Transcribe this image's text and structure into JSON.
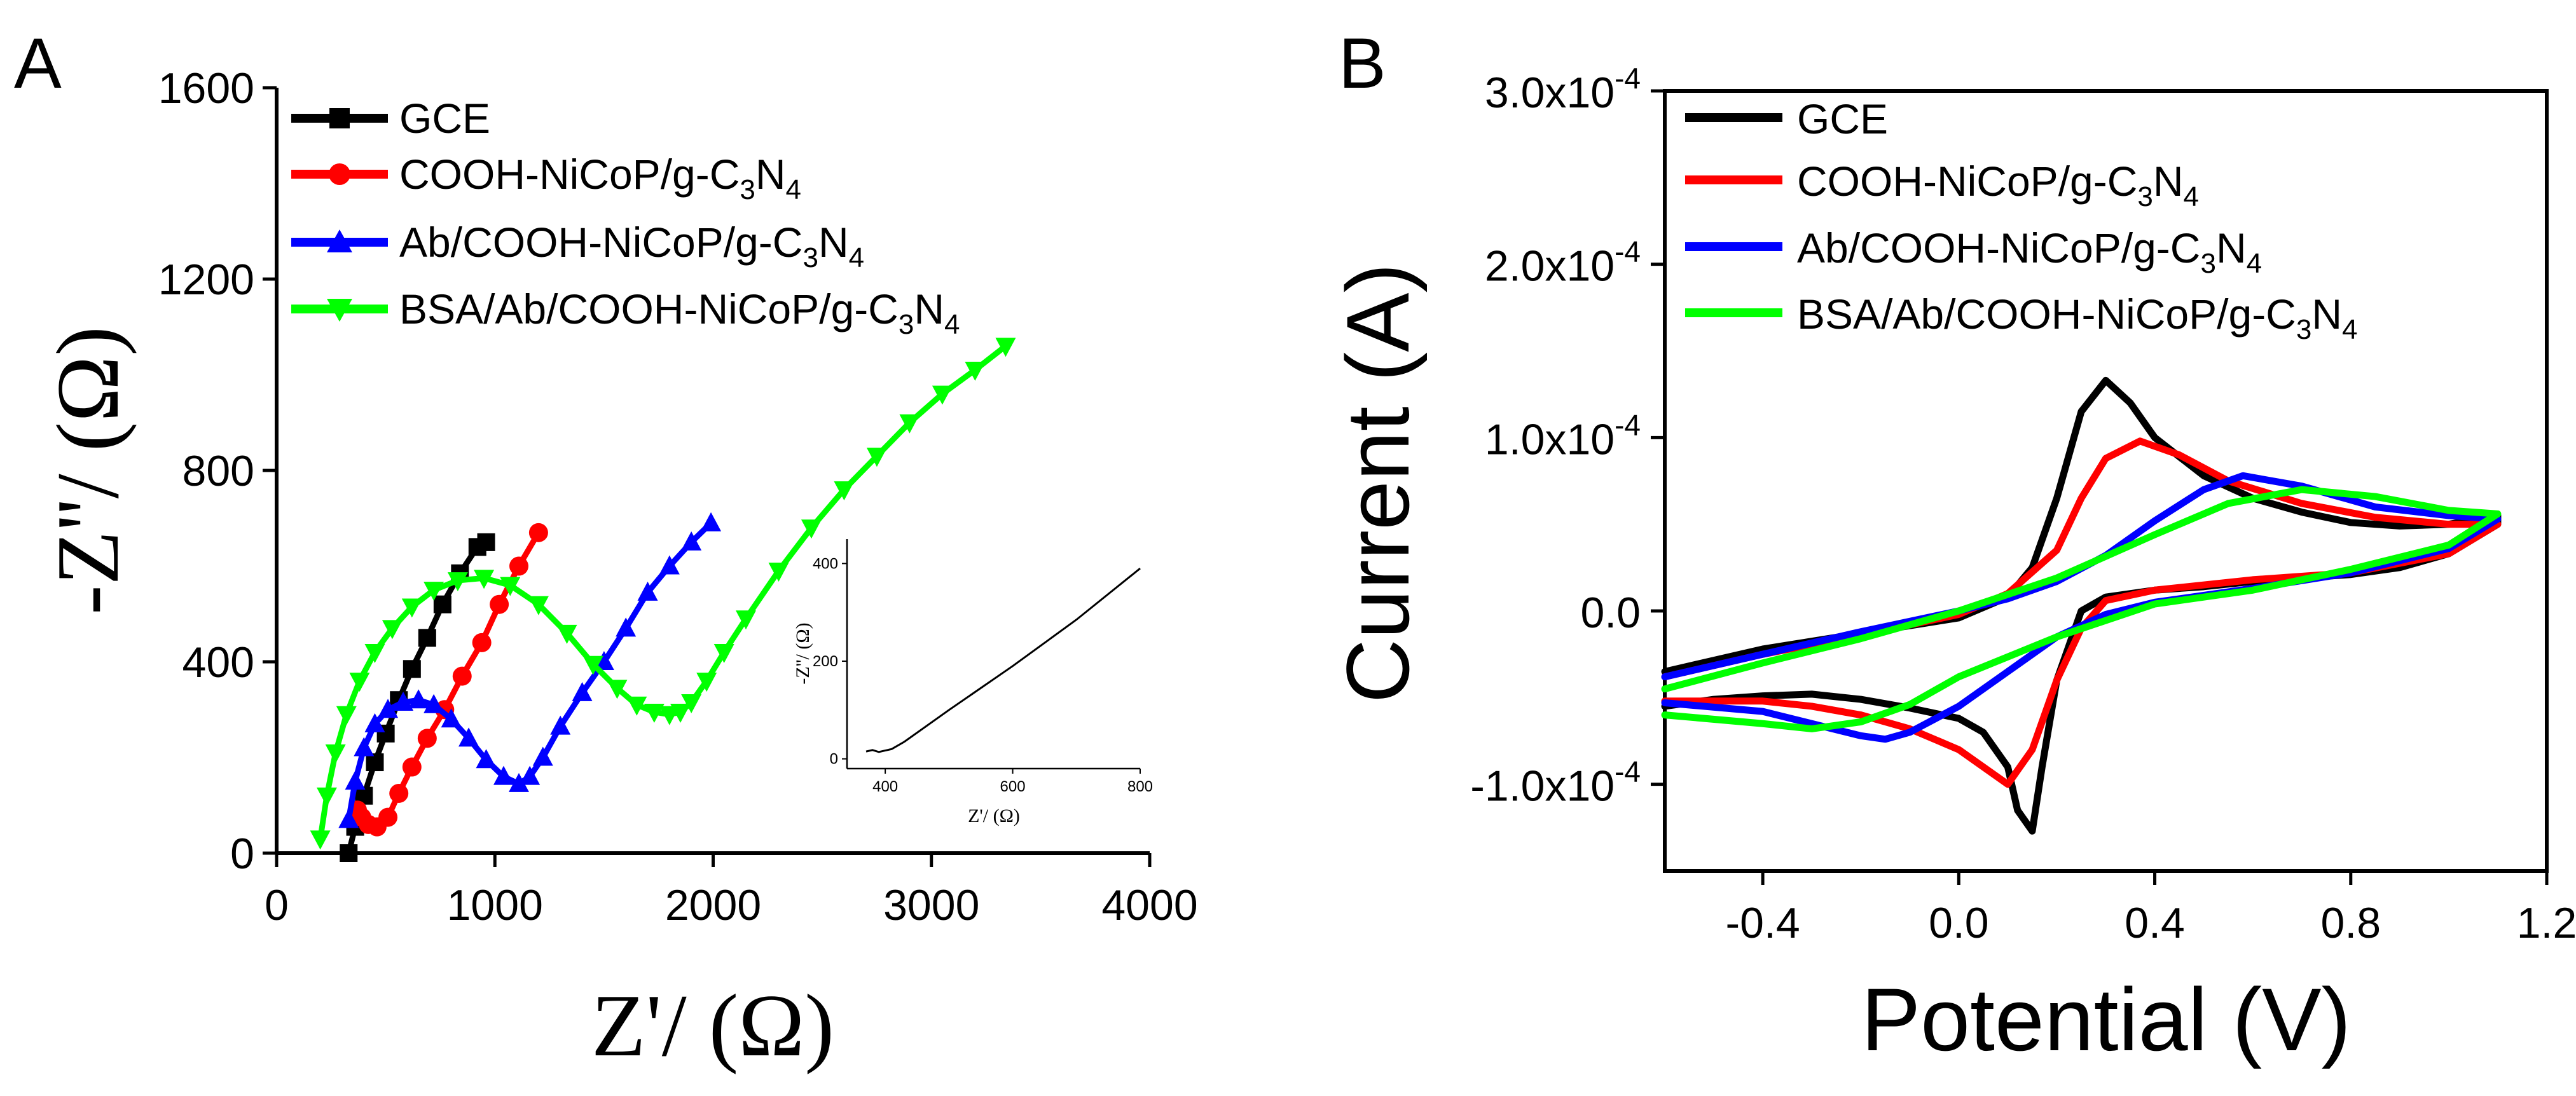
{
  "colors": {
    "gce": "#000000",
    "cooh": "#ff0000",
    "ab": "#0000ff",
    "bsa": "#00ff00"
  },
  "chart_data": [
    {
      "panel": "A",
      "type": "scatter",
      "title": "",
      "xlabel": "Z'/ (Ω)",
      "ylabel": "-Z''/ (Ω)",
      "xlim": [
        0,
        4000
      ],
      "ylim": [
        0,
        1600
      ],
      "xticks": [
        0,
        1000,
        2000,
        3000,
        4000
      ],
      "yticks": [
        0,
        400,
        800,
        1200,
        1600
      ],
      "legend_position": "top-left",
      "series": [
        {
          "name": "GCE",
          "legend_text": "GCE",
          "color": "#000000",
          "marker": "square",
          "x": [
            330,
            360,
            400,
            450,
            500,
            560,
            620,
            690,
            760,
            840,
            920,
            960
          ],
          "y": [
            0,
            55,
            120,
            190,
            250,
            320,
            385,
            450,
            520,
            585,
            640,
            650
          ]
        },
        {
          "name": "COOH-NiCoP/g-C3N4",
          "legend_text": "COOH-NiCoP/g-C",
          "legend_sub1": "3",
          "legend_mid": "N",
          "legend_sub2": "4",
          "color": "#ff0000",
          "marker": "circle",
          "x": [
            370,
            390,
            420,
            460,
            510,
            560,
            620,
            690,
            770,
            850,
            940,
            1020,
            1110,
            1200
          ],
          "y": [
            90,
            75,
            60,
            55,
            75,
            125,
            180,
            240,
            300,
            370,
            440,
            520,
            600,
            670
          ]
        },
        {
          "name": "Ab/COOH-NiCoP/g-C3N4",
          "legend_text": "Ab/COOH-NiCoP/g-C",
          "legend_sub1": "3",
          "legend_mid": "N",
          "legend_sub2": "4",
          "color": "#0000ff",
          "marker": "triangle",
          "x": [
            330,
            360,
            400,
            450,
            510,
            580,
            650,
            720,
            800,
            880,
            960,
            1040,
            1110,
            1160,
            1220,
            1300,
            1400,
            1500,
            1600,
            1700,
            1800,
            1900,
            1990
          ],
          "y": [
            70,
            150,
            220,
            270,
            300,
            315,
            320,
            310,
            280,
            240,
            195,
            160,
            145,
            160,
            200,
            265,
            335,
            400,
            470,
            545,
            600,
            650,
            690
          ]
        },
        {
          "name": "BSA/Ab/COOH-NiCoP/g-C3N4",
          "legend_text": "BSA/Ab/COOH-NiCoP/g-C",
          "legend_sub1": "3",
          "legend_mid": "N",
          "legend_sub2": "4",
          "color": "#00ff00",
          "marker": "triangle-down",
          "x": [
            200,
            230,
            270,
            320,
            380,
            450,
            530,
            620,
            720,
            830,
            950,
            1070,
            1200,
            1330,
            1450,
            1560,
            1650,
            1730,
            1800,
            1850,
            1900,
            1970,
            2050,
            2150,
            2300,
            2450,
            2600,
            2750,
            2900,
            3050,
            3200,
            3340
          ],
          "y": [
            30,
            120,
            210,
            290,
            360,
            420,
            470,
            515,
            550,
            570,
            575,
            560,
            520,
            460,
            395,
            345,
            310,
            295,
            290,
            295,
            315,
            360,
            420,
            490,
            590,
            680,
            760,
            830,
            900,
            960,
            1010,
            1060
          ]
        }
      ],
      "inset": {
        "type": "line",
        "xlabel": "Z'/ (Ω)",
        "ylabel": "-Z''/ (Ω)",
        "xlim": [
          340,
          800
        ],
        "ylim": [
          -20,
          450
        ],
        "xticks": [
          400,
          600,
          800
        ],
        "yticks": [
          0,
          200,
          400
        ],
        "series": [
          {
            "name": "inset",
            "color": "#000000",
            "x": [
              370,
              380,
              390,
              400,
              410,
              430,
              500,
              600,
              700,
              800
            ],
            "y": [
              15,
              18,
              14,
              17,
              20,
              35,
              100,
              190,
              285,
              390
            ]
          }
        ]
      }
    },
    {
      "panel": "B",
      "type": "line",
      "title": "",
      "xlabel": "Potential (V)",
      "ylabel": "Current (A)",
      "xlim": [
        -0.6,
        1.2
      ],
      "ylim": [
        -0.00015,
        0.0003
      ],
      "xticks": [
        -0.4,
        0.0,
        0.4,
        0.8,
        1.2
      ],
      "xtick_labels": [
        "-0.4",
        "0.0",
        "0.4",
        "0.8",
        "1.2"
      ],
      "yticks": [
        -0.0001,
        0,
        0.0001,
        0.0002,
        0.0003
      ],
      "ytick_labels": [
        {
          "mant": "-1.0x10",
          "exp": "-4"
        },
        {
          "mant": "0.0",
          "exp": ""
        },
        {
          "mant": "1.0x10",
          "exp": "-4"
        },
        {
          "mant": "2.0x10",
          "exp": "-4"
        },
        {
          "mant": "3.0x10",
          "exp": "-4"
        }
      ],
      "legend_position": "top-left",
      "series": [
        {
          "name": "GCE",
          "legend_text": "GCE",
          "color": "#000000",
          "x": [
            -0.6,
            -0.4,
            -0.2,
            0.0,
            0.1,
            0.15,
            0.2,
            0.25,
            0.3,
            0.35,
            0.4,
            0.5,
            0.6,
            0.7,
            0.8,
            0.9,
            1.0,
            1.1,
            1.1,
            1.0,
            0.9,
            0.8,
            0.7,
            0.6,
            0.5,
            0.4,
            0.3,
            0.25,
            0.2,
            0.17,
            0.15,
            0.12,
            0.1,
            0.05,
            0.0,
            -0.1,
            -0.2,
            -0.3,
            -0.4,
            -0.5,
            -0.6
          ],
          "y": [
            -3.5e-05,
            -2.2e-05,
            -1.3e-05,
            -4e-06,
            8e-06,
            2.5e-05,
            6.5e-05,
            0.000115,
            0.000133,
            0.00012,
            0.0001,
            7.8e-05,
            6.5e-05,
            5.7e-05,
            5.1e-05,
            4.9e-05,
            5e-05,
            5.5e-05,
            5e-05,
            3.3e-05,
            2.5e-05,
            2.1e-05,
            1.9e-05,
            1.7e-05,
            1.4e-05,
            1.2e-05,
            8e-06,
            0,
            -4e-05,
            -9e-05,
            -0.000127,
            -0.000115,
            -9e-05,
            -7e-05,
            -6.2e-05,
            -5.6e-05,
            -5.1e-05,
            -4.8e-05,
            -4.9e-05,
            -5.1e-05,
            -5.5e-05
          ]
        },
        {
          "name": "COOH-NiCoP/g-C3N4",
          "legend_text": "COOH-NiCoP/g-C",
          "legend_sub1": "3",
          "legend_mid": "N",
          "legend_sub2": "4",
          "color": "#ff0000",
          "x": [
            -0.6,
            -0.4,
            -0.2,
            0.0,
            0.1,
            0.2,
            0.25,
            0.3,
            0.37,
            0.45,
            0.55,
            0.7,
            0.85,
            1.0,
            1.1,
            1.1,
            1.0,
            0.8,
            0.6,
            0.4,
            0.3,
            0.25,
            0.2,
            0.15,
            0.1,
            0.05,
            0.0,
            -0.1,
            -0.2,
            -0.3,
            -0.4,
            -0.6
          ],
          "y": [
            -3.8e-05,
            -2.5e-05,
            -1.4e-05,
            -2e-06,
            1e-05,
            3.5e-05,
            6.5e-05,
            8.8e-05,
            9.8e-05,
            9e-05,
            7.5e-05,
            6.2e-05,
            5.4e-05,
            5e-05,
            5e-05,
            5e-05,
            3.3e-05,
            2.2e-05,
            1.8e-05,
            1.2e-05,
            6e-06,
            -1e-05,
            -4e-05,
            -8e-05,
            -0.0001,
            -9e-05,
            -8e-05,
            -6.8e-05,
            -6e-05,
            -5.5e-05,
            -5.2e-05,
            -5.2e-05
          ]
        },
        {
          "name": "Ab/COOH-NiCoP/g-C3N4",
          "legend_text": "Ab/COOH-NiCoP/g-C",
          "legend_sub1": "3",
          "legend_mid": "N",
          "legend_sub2": "4",
          "color": "#0000ff",
          "x": [
            -0.6,
            -0.4,
            -0.2,
            0.0,
            0.1,
            0.2,
            0.3,
            0.4,
            0.5,
            0.58,
            0.7,
            0.85,
            1.0,
            1.1,
            1.1,
            1.0,
            0.8,
            0.6,
            0.4,
            0.3,
            0.2,
            0.1,
            0.0,
            -0.1,
            -0.15,
            -0.2,
            -0.3,
            -0.4,
            -0.6
          ],
          "y": [
            -3.8e-05,
            -2.5e-05,
            -1.2e-05,
            0,
            7e-06,
            1.7e-05,
            3.2e-05,
            5.2e-05,
            7e-05,
            7.8e-05,
            7.2e-05,
            6e-05,
            5.5e-05,
            5.3e-05,
            5.3e-05,
            3.6e-05,
            2.2e-05,
            1.3e-05,
            5e-06,
            -2e-06,
            -1.5e-05,
            -3.5e-05,
            -5.5e-05,
            -7e-05,
            -7.4e-05,
            -7.2e-05,
            -6.5e-05,
            -5.8e-05,
            -5.3e-05
          ]
        },
        {
          "name": "BSA/Ab/COOH-NiCoP/g-C3N4",
          "legend_text": "BSA/Ab/COOH-NiCoP/g-C",
          "legend_sub1": "3",
          "legend_mid": "N",
          "legend_sub2": "4",
          "color": "#00ff00",
          "x": [
            -0.6,
            -0.4,
            -0.2,
            0.0,
            0.2,
            0.4,
            0.55,
            0.7,
            0.85,
            1.0,
            1.1,
            1.1,
            1.0,
            0.8,
            0.6,
            0.4,
            0.2,
            0.0,
            -0.1,
            -0.2,
            -0.3,
            -0.4,
            -0.6
          ],
          "y": [
            -4.5e-05,
            -3e-05,
            -1.6e-05,
            0,
            1.9e-05,
            4.4e-05,
            6.2e-05,
            7e-05,
            6.6e-05,
            5.8e-05,
            5.6e-05,
            5.6e-05,
            3.8e-05,
            2.4e-05,
            1.2e-05,
            4e-06,
            -1.5e-05,
            -3.8e-05,
            -5.4e-05,
            -6.4e-05,
            -6.8e-05,
            -6.5e-05,
            -6e-05
          ]
        }
      ]
    }
  ]
}
